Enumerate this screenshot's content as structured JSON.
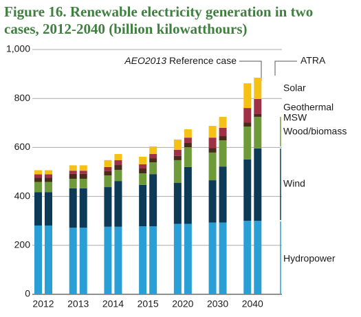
{
  "chart_data": {
    "type": "stacked-bar",
    "title": [
      "Figure 16. Renewable electricity generation in two",
      "cases, 2012-2040 (billion kilowatthours)"
    ],
    "annotations": {
      "reference_italic": "AEO2013",
      "reference": "Reference case",
      "atra": "ATRA"
    },
    "categories": [
      "2012",
      null,
      "2013",
      null,
      "2014",
      null,
      "2015",
      null,
      "2020",
      null,
      "2030",
      null,
      "2040",
      null
    ],
    "series": [
      {
        "name": "Hydropower",
        "color": "#2a9fd6",
        "label_color": "#2a9fd6",
        "values": [
          281,
          281,
          272,
          272,
          276,
          276,
          278,
          278,
          288,
          288,
          293,
          293,
          300,
          300
        ]
      },
      {
        "name": "Wind",
        "color": "#0d3a57",
        "label_color": "#0d3a57",
        "values": [
          136,
          136,
          161,
          161,
          162,
          187,
          169,
          213,
          167,
          232,
          173,
          229,
          251,
          296
        ]
      },
      {
        "name": "Wood/biomass",
        "color": "#6f9a3a",
        "label_color": "#5d9a33",
        "values": [
          42,
          42,
          39,
          39,
          48,
          45,
          47,
          48,
          93,
          81,
          113,
          107,
          134,
          129
        ]
      },
      {
        "name": "MSW",
        "color": "#4a2a1a",
        "label_color": "#1a1a1a",
        "values": [
          17,
          17,
          20,
          20,
          17,
          20,
          20,
          17,
          17,
          17,
          19,
          17,
          17,
          11
        ]
      },
      {
        "name": "Geothermal",
        "color": "#9e3146",
        "label_color": "#b03040",
        "values": [
          14,
          14,
          13,
          13,
          17,
          20,
          17,
          17,
          25,
          22,
          42,
          34,
          59,
          62
        ]
      },
      {
        "name": "Solar",
        "color": "#f5c116",
        "label_color": "#1a1a1a",
        "values": [
          17,
          17,
          22,
          22,
          28,
          25,
          31,
          31,
          42,
          34,
          48,
          45,
          101,
          87
        ]
      }
    ],
    "ylim": [
      0,
      1000
    ],
    "yticks": [
      0,
      200,
      400,
      600,
      800,
      {
        "value": 1000,
        "label": "1,000"
      }
    ],
    "grid": true
  }
}
